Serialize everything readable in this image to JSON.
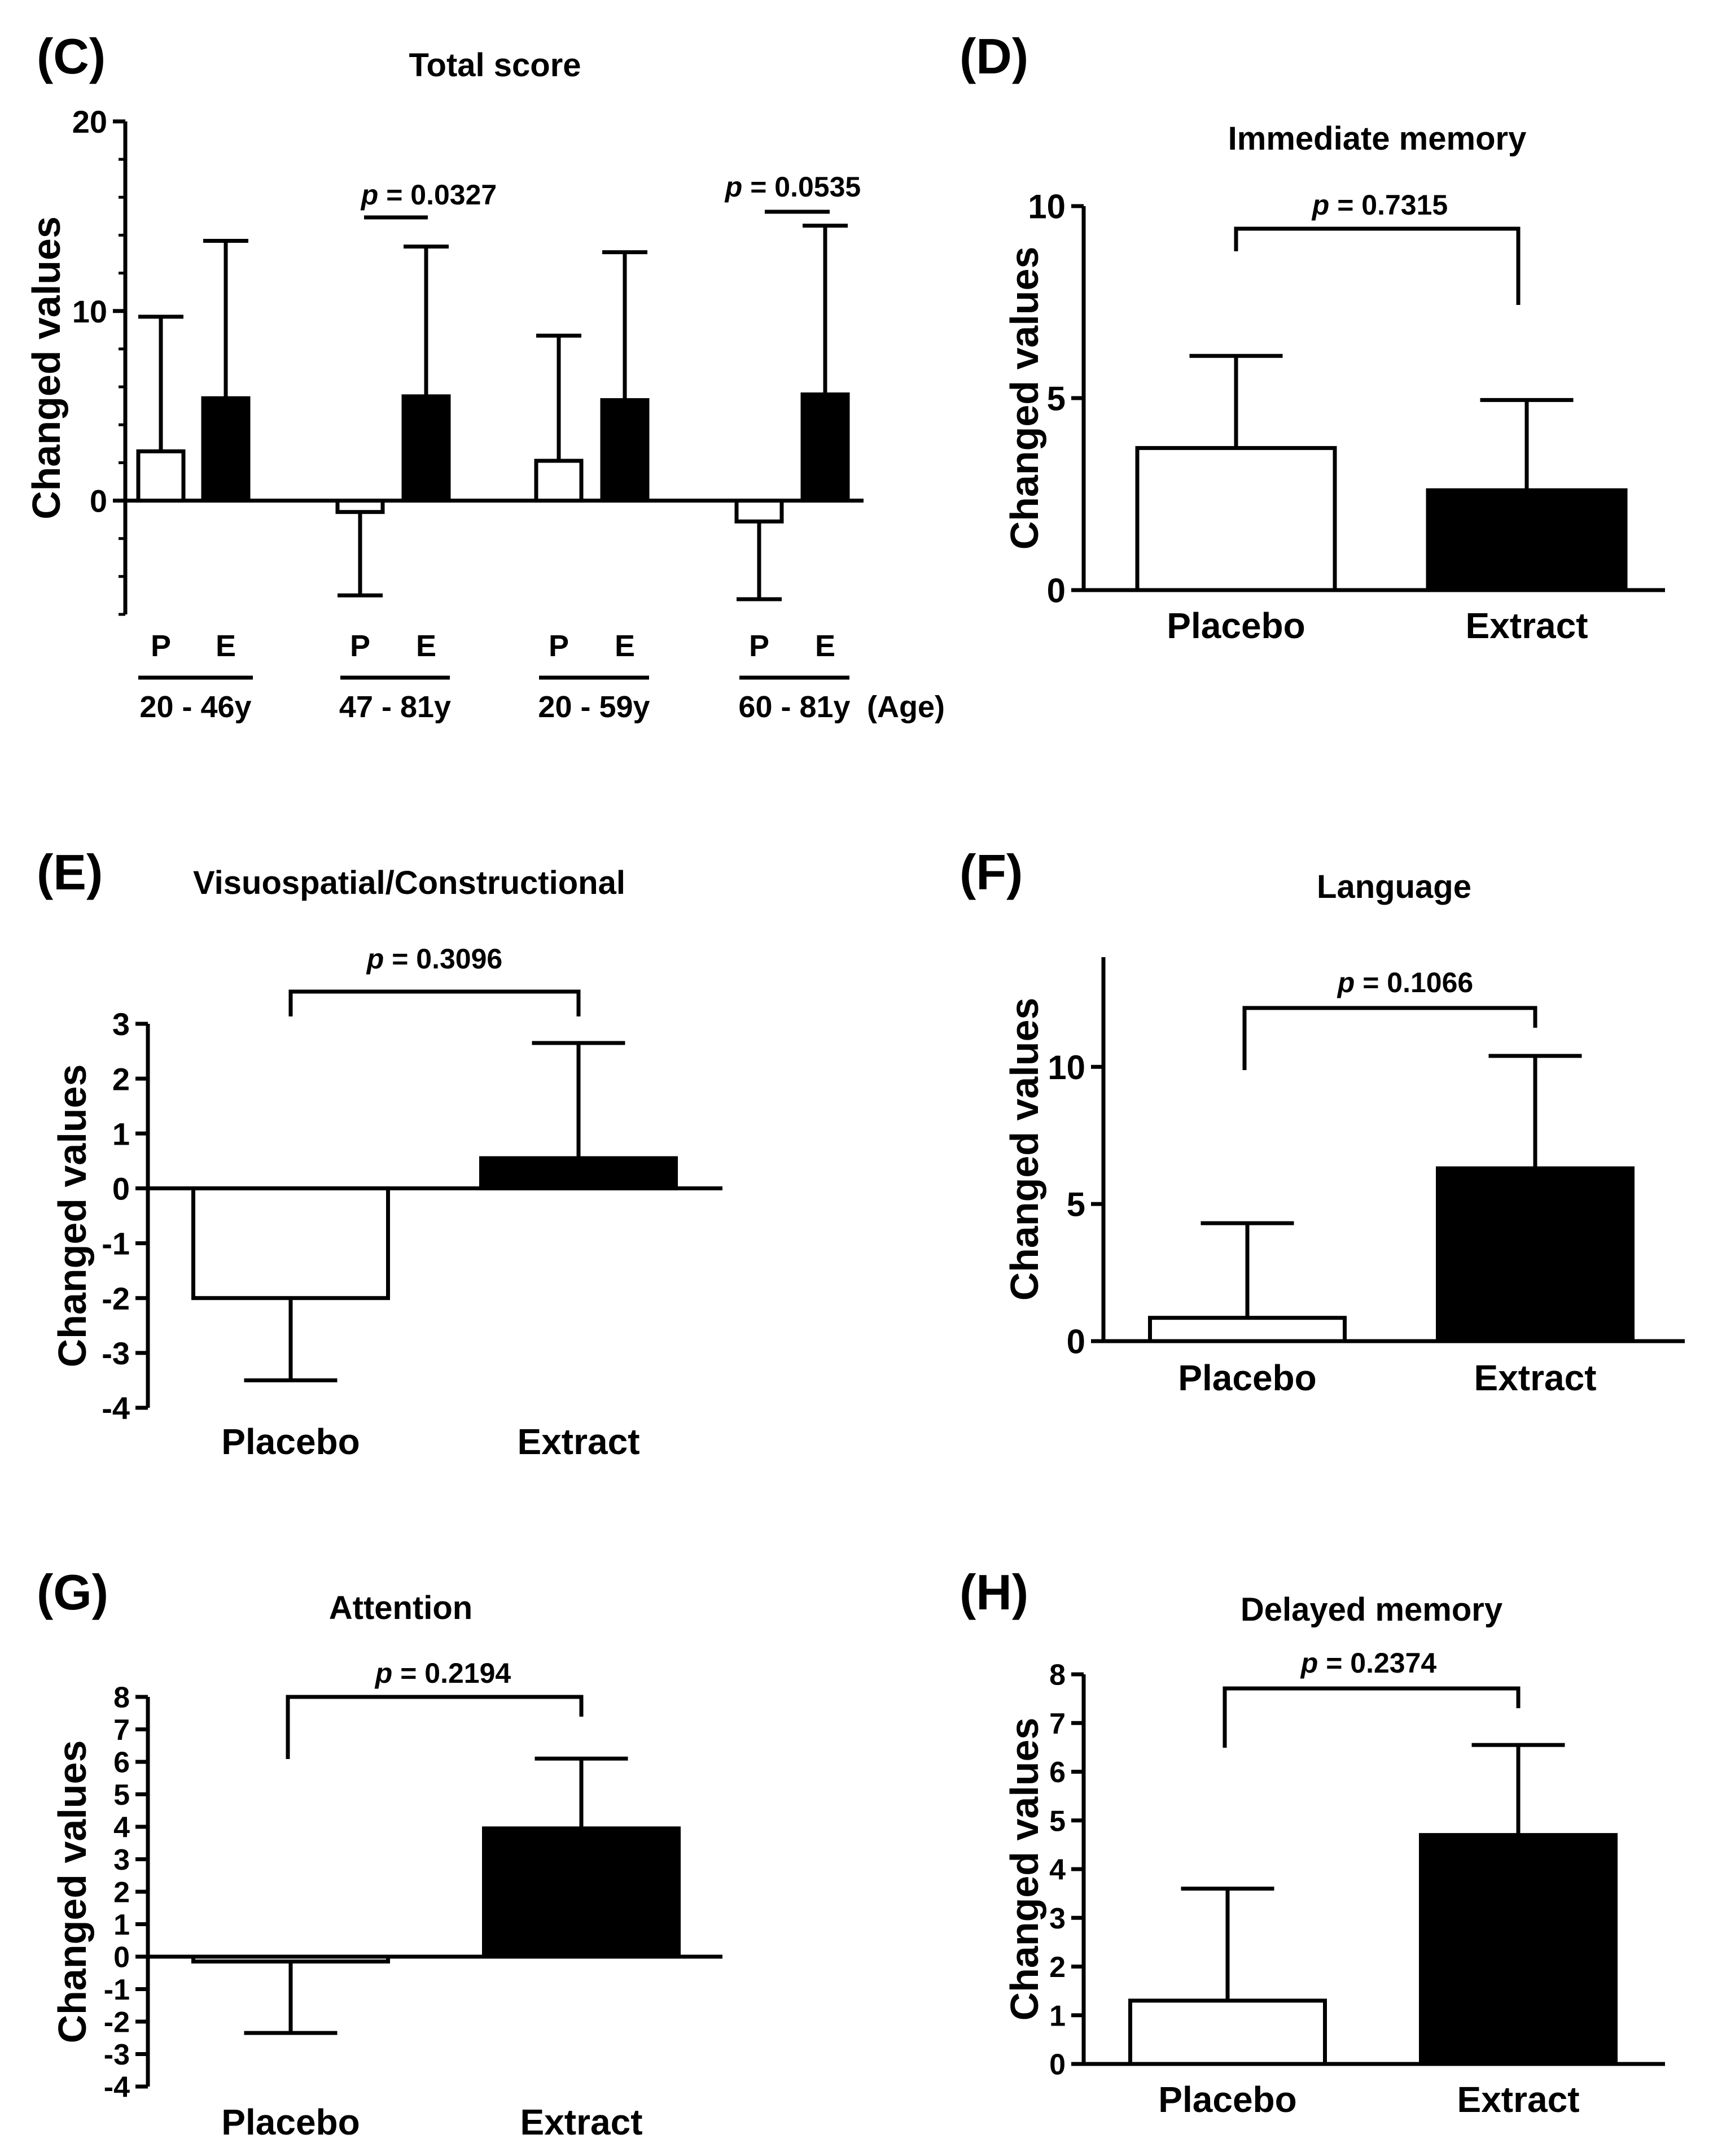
{
  "chart_data": [
    {
      "panel": "(C)",
      "type": "bar",
      "title": "Total score",
      "ylabel": "Changed values",
      "ylim": [
        -6,
        20
      ],
      "yticks": [
        "20",
        "10",
        "0"
      ],
      "yticks_values": [
        20,
        10,
        0
      ],
      "categories": [
        "P",
        "E",
        "P",
        "E",
        "P",
        "E",
        "P",
        "E"
      ],
      "groups": [
        "20 - 46y",
        "47 - 81y",
        "20 - 59y",
        "60 - 81y"
      ],
      "group_axis_label": "(Age)",
      "values": [
        2.6,
        5.4,
        -0.6,
        5.5,
        2.1,
        5.3,
        -1.1,
        5.6
      ],
      "errors": [
        7.1,
        8.3,
        4.4,
        7.9,
        6.6,
        7.8,
        4.1,
        8.9
      ],
      "fills": [
        "#ffffff",
        "#000000",
        "#ffffff",
        "#000000",
        "#ffffff",
        "#000000",
        "#ffffff",
        "#000000"
      ],
      "annotations": [
        {
          "prefix": "p",
          "text": " = 0.0327"
        },
        {
          "prefix": "p",
          "text": " = 0.0535"
        }
      ],
      "grid": false
    },
    {
      "panel": "(D)",
      "type": "bar",
      "title": "Immediate memory",
      "ylabel": "Changed values",
      "ylim": [
        0,
        10
      ],
      "yticks": [
        "10",
        "5",
        "0"
      ],
      "yticks_values": [
        10,
        5,
        0
      ],
      "categories": [
        "Placebo",
        "Extract"
      ],
      "values": [
        3.7,
        2.6
      ],
      "errors": [
        2.4,
        2.35
      ],
      "fills": [
        "#ffffff",
        "#000000"
      ],
      "annotations": [
        {
          "prefix": "p",
          "text": " = 0.7315"
        }
      ],
      "grid": false
    },
    {
      "panel": "(E)",
      "type": "bar",
      "title": "Visuospatial/Constructional",
      "ylabel": "Changed values",
      "ylim": [
        -4,
        3
      ],
      "yticks": [
        "3",
        "2",
        "1",
        "0",
        "-1",
        "-2",
        "-3",
        "-4"
      ],
      "yticks_values": [
        3,
        2,
        1,
        0,
        -1,
        -2,
        -3,
        -4
      ],
      "categories": [
        "Placebo",
        "Extract"
      ],
      "values": [
        -2.0,
        0.55
      ],
      "errors": [
        1.5,
        2.1
      ],
      "fills": [
        "#ffffff",
        "#000000"
      ],
      "annotations": [
        {
          "prefix": "p",
          "text": " = 0.3096"
        }
      ],
      "grid": false
    },
    {
      "panel": "(F)",
      "type": "bar",
      "title": "Language",
      "ylabel": "Changed values",
      "ylim": [
        0,
        14
      ],
      "yticks": [
        "10",
        "5",
        "0"
      ],
      "yticks_values": [
        10,
        5,
        0
      ],
      "categories": [
        "Placebo",
        "Extract"
      ],
      "values": [
        0.85,
        6.3
      ],
      "errors": [
        3.45,
        4.1
      ],
      "fills": [
        "#ffffff",
        "#000000"
      ],
      "annotations": [
        {
          "prefix": "p",
          "text": " = 0.1066"
        }
      ],
      "grid": false
    },
    {
      "panel": "(G)",
      "type": "bar",
      "title": "Attention",
      "ylabel": "Changed values",
      "ylim": [
        -4,
        8
      ],
      "yticks": [
        "8",
        "7",
        "6",
        "5",
        "4",
        "3",
        "2",
        "1",
        "0",
        "-1",
        "-2",
        "-3",
        "-4"
      ],
      "yticks_values": [
        8,
        7,
        6,
        5,
        4,
        3,
        2,
        1,
        0,
        -1,
        -2,
        -3,
        -4
      ],
      "categories": [
        "Placebo",
        "Extract"
      ],
      "values": [
        -0.15,
        3.95
      ],
      "errors": [
        2.2,
        2.15
      ],
      "fills": [
        "#ffffff",
        "#000000"
      ],
      "annotations": [
        {
          "prefix": "p",
          "text": " = 0.2194"
        }
      ],
      "grid": false
    },
    {
      "panel": "(H)",
      "type": "bar",
      "title": "Delayed memory",
      "ylabel": "Changed values",
      "ylim": [
        0,
        8
      ],
      "yticks": [
        "8",
        "7",
        "6",
        "5",
        "4",
        "3",
        "2",
        "1",
        "0"
      ],
      "yticks_values": [
        8,
        7,
        6,
        5,
        4,
        3,
        2,
        1,
        0
      ],
      "categories": [
        "Placebo",
        "Extract"
      ],
      "values": [
        1.3,
        4.7
      ],
      "errors": [
        2.3,
        1.85
      ],
      "fills": [
        "#ffffff",
        "#000000"
      ],
      "annotations": [
        {
          "prefix": "p",
          "text": " = 0.2374"
        }
      ],
      "grid": false
    }
  ]
}
